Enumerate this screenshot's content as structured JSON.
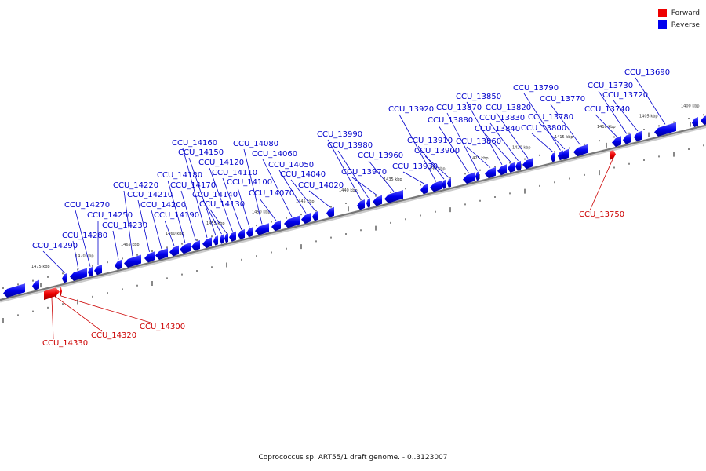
{
  "legend": {
    "forward_label": "Forward",
    "reverse_label": "Reverse",
    "forward_color": "#ee0000",
    "reverse_color": "#0000ee"
  },
  "caption": "Coprococcus sp. ART55/1 draft genome. - 0..3123007",
  "map": {
    "label_color_reverse": "#0000cc",
    "label_color_forward": "#cc0000",
    "axis_color": "#777777",
    "tick_labels": [
      "1475 kbp",
      "1470 kbp",
      "1465 kbp",
      "1460 kbp",
      "1455 kbp",
      "1450 kbp",
      "1445 kbp",
      "1440 kbp",
      "1435 kbp",
      "1430 kbp",
      "1425 kbp",
      "1420 kbp",
      "1415 kbp",
      "1410 kbp",
      "1405 kbp",
      "1400 kbp"
    ]
  },
  "genes": [
    {
      "name": "CCU_14290",
      "strand": "reverse"
    },
    {
      "name": "CCU_14280",
      "strand": "reverse"
    },
    {
      "name": "CCU_14270",
      "strand": "reverse"
    },
    {
      "name": "CCU_14250",
      "strand": "reverse"
    },
    {
      "name": "CCU_14230",
      "strand": "reverse"
    },
    {
      "name": "CCU_14220",
      "strand": "reverse"
    },
    {
      "name": "CCU_14210",
      "strand": "reverse"
    },
    {
      "name": "CCU_14200",
      "strand": "reverse"
    },
    {
      "name": "CCU_14190",
      "strand": "reverse"
    },
    {
      "name": "CCU_14180",
      "strand": "reverse"
    },
    {
      "name": "CCU_14170",
      "strand": "reverse"
    },
    {
      "name": "CCU_14160",
      "strand": "reverse"
    },
    {
      "name": "CCU_14150",
      "strand": "reverse"
    },
    {
      "name": "CCU_14140",
      "strand": "reverse"
    },
    {
      "name": "CCU_14130",
      "strand": "reverse"
    },
    {
      "name": "CCU_14120",
      "strand": "reverse"
    },
    {
      "name": "CCU_14110",
      "strand": "reverse"
    },
    {
      "name": "CCU_14100",
      "strand": "reverse"
    },
    {
      "name": "CCU_14080",
      "strand": "reverse"
    },
    {
      "name": "CCU_14070",
      "strand": "reverse"
    },
    {
      "name": "CCU_14060",
      "strand": "reverse"
    },
    {
      "name": "CCU_14050",
      "strand": "reverse"
    },
    {
      "name": "CCU_14040",
      "strand": "reverse"
    },
    {
      "name": "CCU_14020",
      "strand": "reverse"
    },
    {
      "name": "CCU_13990",
      "strand": "reverse"
    },
    {
      "name": "CCU_13980",
      "strand": "reverse"
    },
    {
      "name": "CCU_13970",
      "strand": "reverse"
    },
    {
      "name": "CCU_13960",
      "strand": "reverse"
    },
    {
      "name": "CCU_13930",
      "strand": "reverse"
    },
    {
      "name": "CCU_13920",
      "strand": "reverse"
    },
    {
      "name": "CCU_13910",
      "strand": "reverse"
    },
    {
      "name": "CCU_13900",
      "strand": "reverse"
    },
    {
      "name": "CCU_13880",
      "strand": "reverse"
    },
    {
      "name": "CCU_13870",
      "strand": "reverse"
    },
    {
      "name": "CCU_13860",
      "strand": "reverse"
    },
    {
      "name": "CCU_13850",
      "strand": "reverse"
    },
    {
      "name": "CCU_13840",
      "strand": "reverse"
    },
    {
      "name": "CCU_13830",
      "strand": "reverse"
    },
    {
      "name": "CCU_13820",
      "strand": "reverse"
    },
    {
      "name": "CCU_13800",
      "strand": "reverse"
    },
    {
      "name": "CCU_13790",
      "strand": "reverse"
    },
    {
      "name": "CCU_13780",
      "strand": "reverse"
    },
    {
      "name": "CCU_13770",
      "strand": "reverse"
    },
    {
      "name": "CCU_13740",
      "strand": "reverse"
    },
    {
      "name": "CCU_13730",
      "strand": "reverse"
    },
    {
      "name": "CCU_13720",
      "strand": "reverse"
    },
    {
      "name": "CCU_13690",
      "strand": "reverse"
    },
    {
      "name": "CCU_14330",
      "strand": "forward"
    },
    {
      "name": "CCU_14320",
      "strand": "forward"
    },
    {
      "name": "CCU_14300",
      "strand": "forward"
    },
    {
      "name": "CCU_13750",
      "strand": "forward"
    }
  ]
}
